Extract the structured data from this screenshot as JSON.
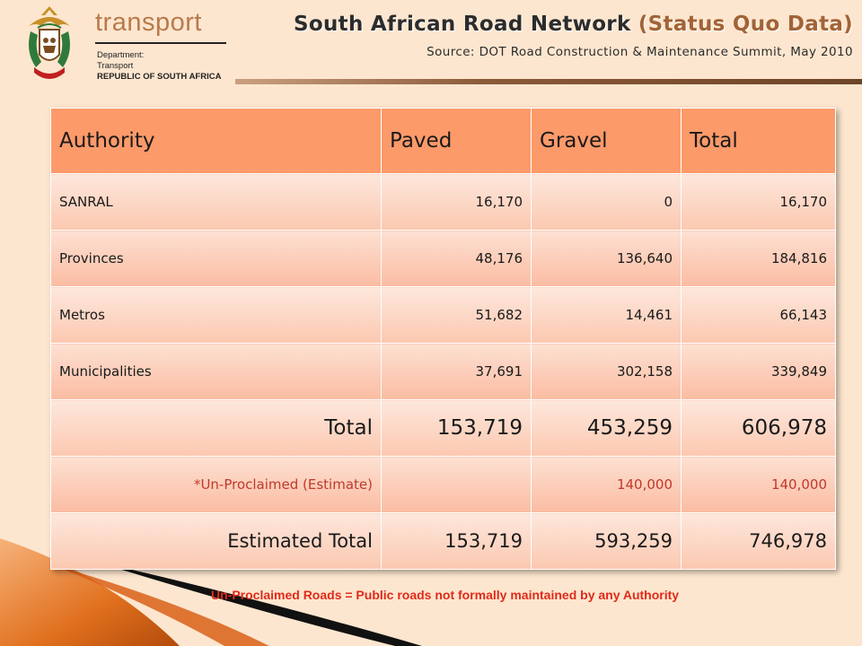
{
  "header": {
    "brand_word": "transport",
    "dept_line1": "Department:",
    "dept_line2": "Transport",
    "dept_line3": "REPUBLIC OF SOUTH AFRICA",
    "title_main": "South African Road Network",
    "title_paren": "(Status Quo Data)",
    "subtitle": "Source: DOT Road Construction & Maintenance Summit, May 2010"
  },
  "table": {
    "headers": [
      "Authority",
      "Paved",
      "Gravel",
      "Total"
    ],
    "rows": [
      [
        "SANRAL",
        "16,170",
        "0",
        "16,170"
      ],
      [
        "Provinces",
        "48,176",
        "136,640",
        "184,816"
      ],
      [
        "Metros",
        "51,682",
        "14,461",
        "66,143"
      ],
      [
        "Municipalities",
        "37,691",
        "302,158",
        "339,849"
      ],
      [
        "Total",
        "153,719",
        "453,259",
        "606,978"
      ],
      [
        "*Un-Proclaimed (Estimate)",
        "",
        "140,000",
        "140,000"
      ],
      [
        "Estimated Total",
        "153,719",
        "593,259",
        "746,978"
      ]
    ]
  },
  "footnote": "Un-Proclaimed Roads = Public roads not formally maintained by any Authority",
  "colors": {
    "background": "#fde6cf",
    "header_cell": "#fc9a6a",
    "accent_red": "#e02a1a",
    "brand_brown": "#b87a4b"
  },
  "icons": {
    "coat_of_arms": "south-africa-coat-of-arms-icon"
  }
}
